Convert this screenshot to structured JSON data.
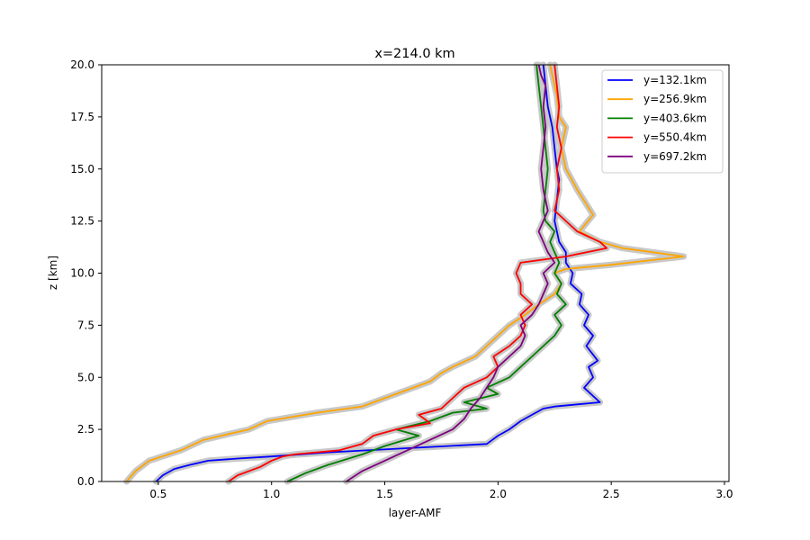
{
  "chart_data": {
    "type": "line",
    "title": "x=214.0 km",
    "xlabel": "layer-AMF",
    "ylabel": "z [km]",
    "xlim": [
      0.25,
      3.02
    ],
    "ylim": [
      0,
      20
    ],
    "xticks": [
      "0.5",
      "1.0",
      "1.5",
      "2.0",
      "2.5",
      "3.0"
    ],
    "yticks": [
      "0.0",
      "2.5",
      "5.0",
      "7.5",
      "10.0",
      "12.5",
      "15.0",
      "17.5",
      "20.0"
    ],
    "xtick_values": [
      0.5,
      1.0,
      1.5,
      2.0,
      2.5,
      3.0
    ],
    "ytick_values": [
      0.0,
      2.5,
      5.0,
      7.5,
      10.0,
      12.5,
      15.0,
      17.5,
      20.0
    ],
    "legend_position": "top-right",
    "uncertainty_band_color": "#c8c8c8",
    "series": [
      {
        "name": "y=132.1km",
        "color": "#0000ff",
        "x": [
          0.49,
          0.52,
          0.57,
          0.64,
          0.72,
          0.85,
          1.0,
          1.25,
          1.6,
          1.95,
          2.0,
          2.05,
          2.1,
          2.15,
          2.2,
          2.25,
          2.35,
          2.45,
          2.38,
          2.42,
          2.4,
          2.44,
          2.39,
          2.42,
          2.38,
          2.4,
          2.36,
          2.37,
          2.32,
          2.33,
          2.3,
          2.3,
          2.27,
          2.26,
          2.25,
          2.26,
          2.27,
          2.26,
          2.25,
          2.24,
          2.22,
          2.21,
          2.2
        ],
        "y": [
          0.0,
          0.3,
          0.6,
          0.8,
          1.0,
          1.1,
          1.2,
          1.4,
          1.6,
          1.8,
          2.2,
          2.5,
          2.9,
          3.2,
          3.5,
          3.6,
          3.7,
          3.8,
          4.5,
          5.0,
          5.5,
          5.8,
          6.5,
          7.0,
          7.5,
          8.0,
          8.5,
          9.0,
          9.5,
          10.0,
          10.5,
          11.0,
          11.5,
          12.0,
          12.5,
          13.5,
          14.5,
          15.0,
          16.0,
          17.0,
          18.0,
          19.0,
          20.0
        ]
      },
      {
        "name": "y=256.9km",
        "color": "#ffa500",
        "x": [
          0.36,
          0.4,
          0.46,
          0.6,
          0.7,
          0.9,
          0.98,
          1.2,
          1.4,
          1.5,
          1.6,
          1.7,
          1.75,
          1.8,
          1.9,
          1.95,
          2.0,
          2.05,
          2.12,
          2.18,
          2.25,
          2.28,
          2.25,
          2.3,
          2.5,
          2.82,
          2.55,
          2.45,
          2.36,
          2.42,
          2.35,
          2.3,
          2.28,
          2.3,
          2.27,
          2.26,
          2.24,
          2.23
        ],
        "y": [
          0.0,
          0.5,
          1.0,
          1.5,
          2.0,
          2.5,
          2.9,
          3.3,
          3.6,
          4.0,
          4.4,
          4.8,
          5.2,
          5.5,
          6.0,
          6.5,
          7.0,
          7.5,
          8.0,
          8.5,
          9.0,
          9.5,
          10.0,
          10.2,
          10.4,
          10.8,
          11.2,
          11.5,
          12.0,
          12.8,
          14.0,
          15.0,
          16.0,
          17.0,
          17.5,
          18.5,
          19.5,
          20.0
        ]
      },
      {
        "name": "y=403.6km",
        "color": "#008000",
        "x": [
          1.07,
          1.15,
          1.25,
          1.4,
          1.5,
          1.65,
          1.55,
          1.7,
          1.8,
          1.95,
          1.85,
          2.0,
          1.95,
          2.05,
          2.1,
          2.15,
          2.2,
          2.25,
          2.28,
          2.25,
          2.3,
          2.26,
          2.28,
          2.25,
          2.27,
          2.25,
          2.23,
          2.25,
          2.21,
          2.2,
          2.21,
          2.22,
          2.21,
          2.2,
          2.19,
          2.18,
          2.17
        ],
        "y": [
          0.0,
          0.4,
          0.8,
          1.3,
          1.7,
          2.2,
          2.5,
          2.9,
          3.3,
          3.5,
          3.8,
          4.2,
          4.5,
          5.0,
          5.5,
          6.0,
          6.5,
          7.0,
          7.5,
          8.0,
          8.5,
          9.0,
          9.5,
          10.0,
          10.5,
          11.0,
          11.5,
          12.0,
          12.5,
          13.0,
          14.0,
          15.0,
          16.0,
          17.0,
          18.0,
          19.0,
          20.0
        ]
      },
      {
        "name": "y=550.4km",
        "color": "#ff0000",
        "x": [
          0.81,
          0.85,
          0.95,
          1.0,
          1.05,
          1.1,
          1.3,
          1.4,
          1.45,
          1.55,
          1.7,
          1.65,
          1.75,
          1.8,
          1.85,
          1.95,
          2.0,
          1.98,
          2.05,
          2.1,
          2.12,
          2.1,
          2.15,
          2.1,
          2.1,
          2.08,
          2.1,
          2.3,
          2.48,
          2.45,
          2.35,
          2.3,
          2.25,
          2.27,
          2.26,
          2.28,
          2.26,
          2.27,
          2.25
        ],
        "y": [
          0.0,
          0.3,
          0.7,
          1.0,
          1.2,
          1.3,
          1.5,
          1.8,
          2.2,
          2.5,
          2.8,
          3.2,
          3.5,
          4.0,
          4.5,
          5.0,
          5.5,
          6.0,
          6.5,
          7.0,
          7.5,
          8.0,
          8.5,
          9.0,
          9.5,
          10.0,
          10.5,
          10.8,
          11.2,
          11.5,
          12.0,
          12.5,
          13.0,
          14.0,
          15.0,
          16.0,
          17.0,
          18.0,
          20.0
        ]
      },
      {
        "name": "y=697.2km",
        "color": "#800080",
        "x": [
          1.33,
          1.4,
          1.5,
          1.6,
          1.7,
          1.8,
          1.85,
          1.88,
          1.92,
          1.95,
          1.98,
          2.0,
          2.05,
          2.1,
          2.12,
          2.1,
          2.15,
          2.18,
          2.2,
          2.22,
          2.2,
          2.25,
          2.22,
          2.2,
          2.18,
          2.2,
          2.22,
          2.2,
          2.19,
          2.2,
          2.21,
          2.2,
          2.21,
          2.19,
          2.18
        ],
        "y": [
          0.0,
          0.5,
          1.0,
          1.5,
          2.0,
          2.5,
          3.0,
          3.5,
          4.0,
          4.5,
          5.0,
          5.5,
          6.0,
          6.5,
          7.0,
          7.5,
          8.0,
          8.5,
          9.0,
          9.5,
          10.0,
          10.5,
          11.0,
          11.5,
          12.0,
          12.5,
          13.0,
          14.0,
          15.0,
          16.0,
          17.0,
          18.0,
          19.0,
          19.5,
          20.0
        ]
      }
    ]
  }
}
